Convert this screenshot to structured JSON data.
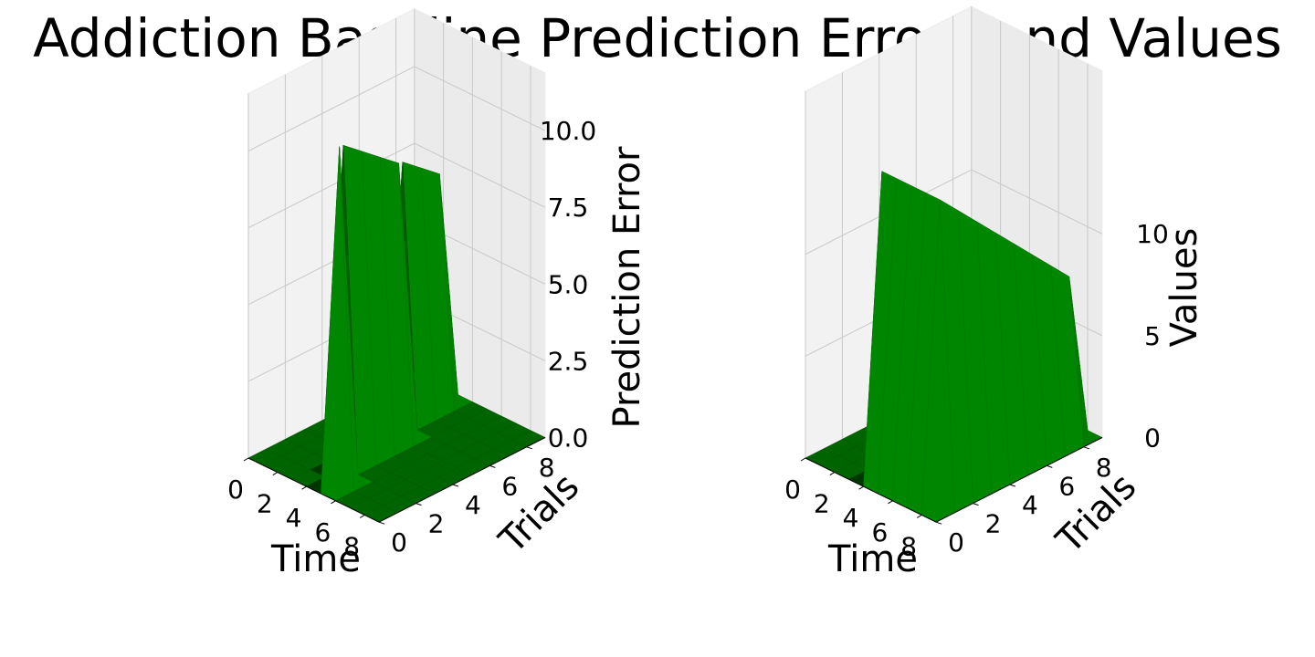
{
  "title": "Addiction Baseline Prediction Errors and Values",
  "surface_color": "#008000",
  "chart_data": [
    {
      "type": "surface3d",
      "title": "",
      "xlabel": "Time",
      "ylabel": "Trials",
      "zlabel": "Prediction Error",
      "x": [
        0,
        1,
        2,
        3,
        4,
        5,
        6,
        7,
        8,
        9
      ],
      "y": [
        0,
        1,
        2,
        3,
        4,
        5,
        6,
        7,
        8,
        9
      ],
      "xticks": [
        "0",
        "2",
        "4",
        "6",
        "8"
      ],
      "yticks": [
        "0",
        "2",
        "4",
        "6",
        "8"
      ],
      "zticks": [
        "0.0",
        "2.5",
        "5.0",
        "7.5",
        "10.0"
      ],
      "zlim": [
        0,
        11
      ],
      "z": [
        [
          0,
          0,
          0,
          0,
          0,
          0,
          0,
          0,
          0,
          0
        ],
        [
          0,
          0,
          0,
          0,
          0,
          11,
          0,
          0,
          0,
          0
        ],
        [
          0,
          0,
          0,
          0,
          10.5,
          0,
          0,
          0,
          0,
          0
        ],
        [
          0,
          0,
          0,
          0,
          10,
          0,
          0,
          0,
          0,
          0
        ],
        [
          0,
          0,
          0,
          0,
          9.5,
          0,
          0,
          0,
          0,
          0
        ],
        [
          0,
          0,
          0,
          0,
          9,
          0,
          0,
          0,
          0,
          0
        ],
        [
          0,
          0,
          0,
          8.5,
          0,
          0,
          0,
          0,
          0,
          0
        ],
        [
          0,
          0,
          0,
          8,
          0,
          0,
          0,
          0,
          0,
          0
        ],
        [
          0,
          0,
          0,
          7.5,
          0,
          0,
          0,
          0,
          0,
          0
        ],
        [
          0,
          0,
          0,
          0,
          0,
          0,
          0,
          0,
          0,
          0
        ]
      ]
    },
    {
      "type": "surface3d",
      "title": "",
      "xlabel": "Time",
      "ylabel": "Trials",
      "zlabel": "Values",
      "x": [
        0,
        1,
        2,
        3,
        4,
        5,
        6,
        7,
        8,
        9
      ],
      "y": [
        0,
        1,
        2,
        3,
        4,
        5,
        6,
        7,
        8,
        9
      ],
      "xticks": [
        "0",
        "2",
        "4",
        "6",
        "8"
      ],
      "yticks": [
        "0",
        "2",
        "4",
        "6",
        "8"
      ],
      "zticks": [
        "0",
        "5",
        "10"
      ],
      "zlim": [
        0,
        15
      ],
      "z": [
        [
          0,
          0,
          0,
          0,
          0,
          0,
          0,
          0,
          0,
          0
        ],
        [
          0,
          0,
          0,
          0,
          15,
          15,
          15,
          15,
          15,
          0
        ],
        [
          0,
          0,
          0,
          0,
          14,
          14,
          14,
          14,
          14,
          0
        ],
        [
          0,
          0,
          0,
          0,
          13,
          13,
          13,
          13,
          13,
          0
        ],
        [
          0,
          0,
          0,
          0,
          12,
          12,
          12,
          12,
          12,
          0
        ],
        [
          0,
          0,
          0,
          0,
          11,
          11,
          11,
          11,
          11,
          0
        ],
        [
          0,
          0,
          0,
          10,
          10,
          10,
          10,
          10,
          10,
          0
        ],
        [
          0,
          0,
          0,
          9,
          9,
          9,
          9,
          9,
          9,
          0
        ],
        [
          0,
          0,
          0,
          8,
          8,
          8,
          8,
          8,
          8,
          0
        ],
        [
          0,
          0,
          0,
          0,
          0,
          0,
          0,
          0,
          0,
          0
        ]
      ]
    }
  ]
}
